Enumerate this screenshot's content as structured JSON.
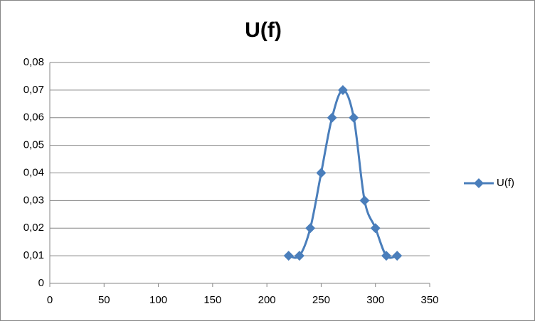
{
  "chart_data": {
    "type": "scatter",
    "title": "U(f)",
    "x": [
      220,
      230,
      240,
      250,
      260,
      270,
      280,
      290,
      300,
      310,
      320
    ],
    "series": [
      {
        "name": "U(f)",
        "color": "#4a7ebb",
        "values": [
          0.01,
          0.01,
          0.02,
          0.04,
          0.06,
          0.07,
          0.06,
          0.03,
          0.02,
          0.01,
          0.01
        ]
      }
    ],
    "xlim": [
      0,
      350
    ],
    "xticks": [
      0,
      50,
      100,
      150,
      200,
      250,
      300,
      350
    ],
    "ylim": [
      0,
      0.08
    ],
    "yticks": [
      0,
      {
        "value": 0.01,
        "label": "0,01"
      },
      {
        "value": 0.02,
        "label": "0,02"
      },
      {
        "value": 0.03,
        "label": "0,03"
      },
      {
        "value": 0.04,
        "label": "0,04"
      },
      {
        "value": 0.05,
        "label": "0,05"
      },
      {
        "value": 0.06,
        "label": "0,06"
      },
      {
        "value": 0.07,
        "label": "0,07"
      },
      {
        "value": 0.08,
        "label": "0,08"
      }
    ],
    "grid": true,
    "smooth": true,
    "legend": "right"
  }
}
